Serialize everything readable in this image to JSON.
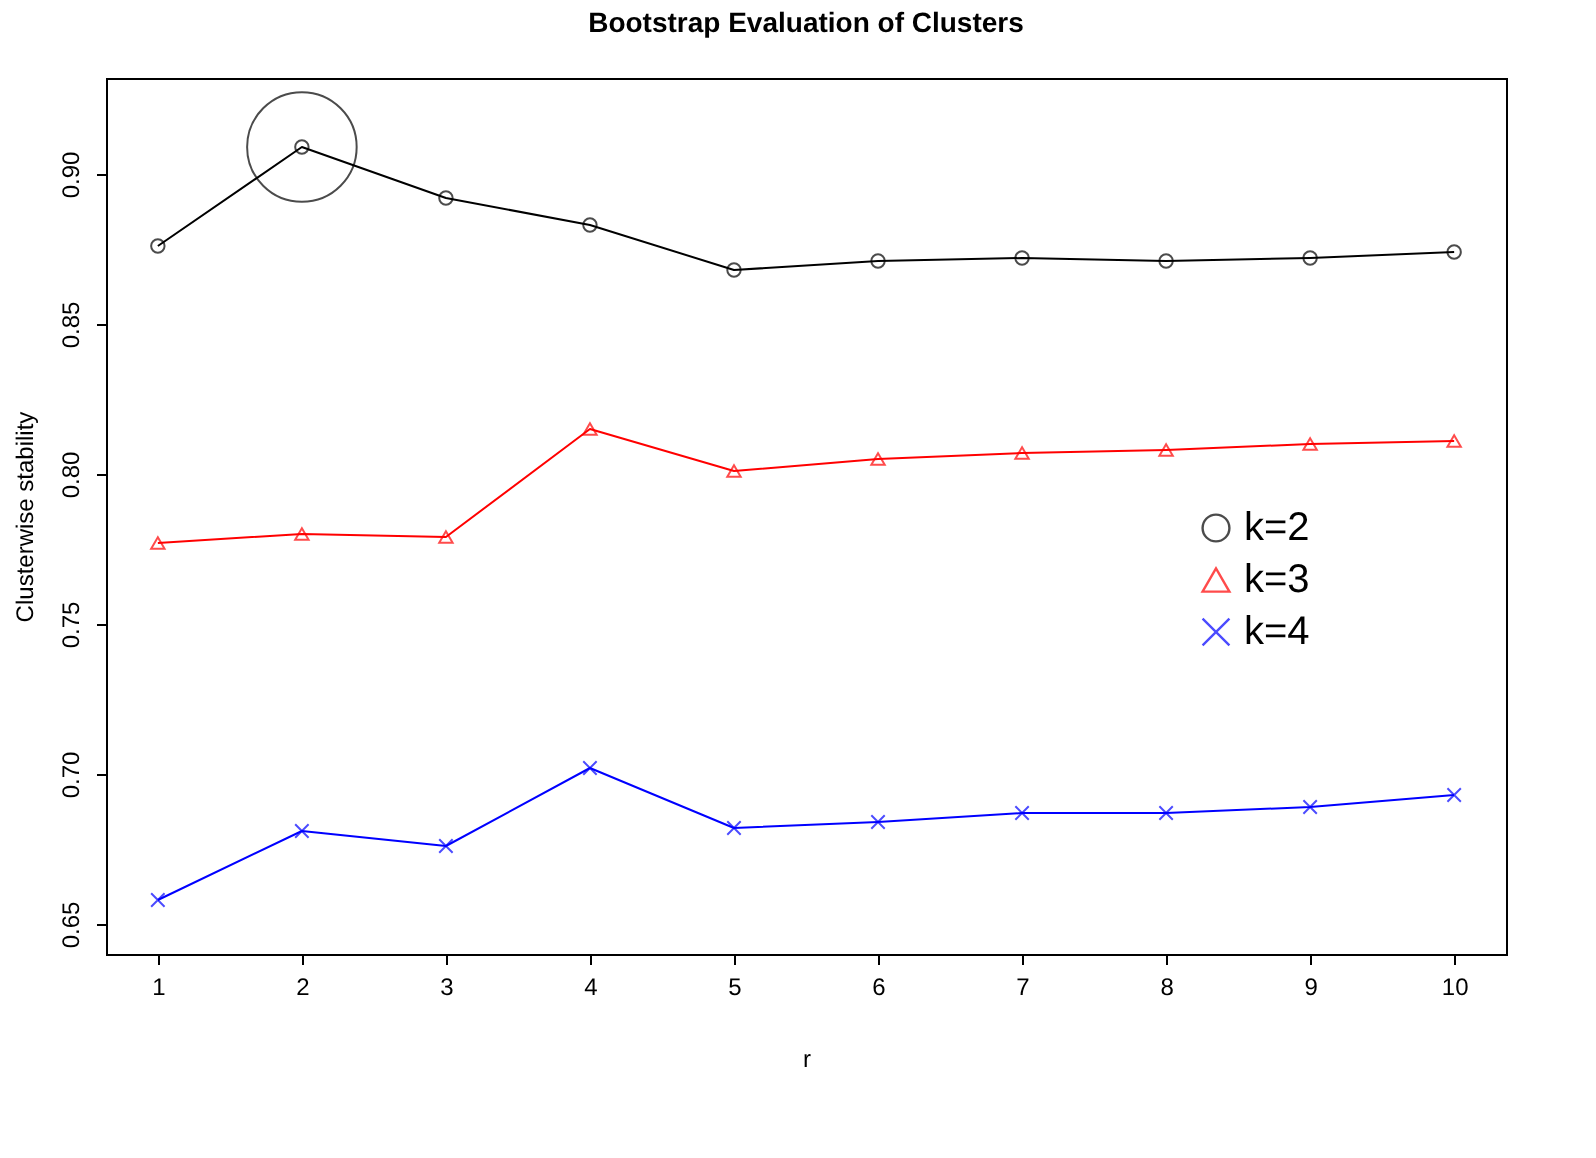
{
  "chart_data": {
    "type": "line",
    "title": "Bootstrap Evaluation of Clusters",
    "xlabel": "r",
    "ylabel": "Clusterwise stability",
    "x": [
      1,
      2,
      3,
      4,
      5,
      6,
      7,
      8,
      9,
      10
    ],
    "series": [
      {
        "name": "k=2",
        "color": "#000000",
        "marker": "circle",
        "values": [
          0.876,
          0.909,
          0.892,
          0.883,
          0.868,
          0.871,
          0.872,
          0.871,
          0.872,
          0.874
        ]
      },
      {
        "name": "k=3",
        "color": "#ff0000",
        "marker": "triangle",
        "values": [
          0.777,
          0.78,
          0.779,
          0.815,
          0.801,
          0.805,
          0.807,
          0.808,
          0.81,
          0.811
        ]
      },
      {
        "name": "k=4",
        "color": "#0000ff",
        "marker": "cross",
        "values": [
          0.658,
          0.681,
          0.676,
          0.702,
          0.682,
          0.684,
          0.687,
          0.687,
          0.689,
          0.693
        ]
      },
      {
        "type": "scatter",
        "color": "#000000",
        "marker": "circle",
        "values": [
          null,
          0.909,
          null,
          null,
          null,
          null,
          null,
          null,
          null,
          null
        ]
      }
    ],
    "xlim": [
      0.64,
      10.36
    ],
    "xticks": [
      1,
      2,
      3,
      4,
      5,
      6,
      7,
      8,
      9,
      10
    ],
    "ylim": [
      0.64,
      0.932
    ],
    "yticks": [
      0.65,
      {
        "value": 0.7,
        "label": "0.70"
      },
      0.75,
      {
        "value": 0.8,
        "label": "0.80"
      },
      0.85,
      {
        "value": 0.9,
        "label": "0.90"
      }
    ],
    "grid": false,
    "legend": "right",
    "line_style": "solid"
  }
}
